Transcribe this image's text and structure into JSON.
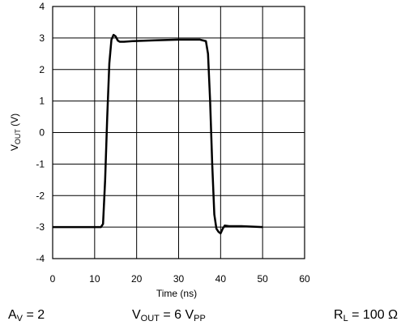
{
  "chart_data": {
    "type": "line",
    "title": "",
    "xlabel": "Time (ns)",
    "ylabel": {
      "main": "V",
      "sub": "OUT",
      "unit": " (V)"
    },
    "xlim": [
      0,
      60
    ],
    "ylim": [
      -4,
      4
    ],
    "xticks": [
      0,
      10,
      20,
      30,
      40,
      50,
      60
    ],
    "yticks": [
      -4,
      -3,
      -2,
      -1,
      0,
      1,
      2,
      3,
      4
    ],
    "grid": true,
    "series": [
      {
        "color": "#000000",
        "x": [
          0,
          11.5,
          12.0,
          12.5,
          13.0,
          13.5,
          14.0,
          14.5,
          15.0,
          15.5,
          16.0,
          17.0,
          19.0,
          25.0,
          30.0,
          35.0,
          36.5,
          37.0,
          37.5,
          38.0,
          38.5,
          39.0,
          39.5,
          40.0,
          40.5,
          41.0,
          42.0,
          45.0,
          50.0
        ],
        "y": [
          -3.0,
          -3.0,
          -2.9,
          -1.5,
          0.5,
          2.2,
          2.95,
          3.1,
          3.05,
          2.92,
          2.88,
          2.88,
          2.9,
          2.93,
          2.95,
          2.95,
          2.9,
          2.5,
          1.0,
          -1.0,
          -2.6,
          -3.05,
          -3.15,
          -3.2,
          -3.05,
          -2.95,
          -2.97,
          -2.97,
          -3.0
        ]
      }
    ]
  },
  "captions": {
    "gain": {
      "main": "A",
      "sub": "V",
      "rest": " = 2"
    },
    "vout": {
      "main": "V",
      "sub": "OUT",
      "mid": " = 6 V",
      "sub2": "PP"
    },
    "load": {
      "main": "R",
      "sub": "L",
      "rest": " = 100 Ω"
    }
  }
}
